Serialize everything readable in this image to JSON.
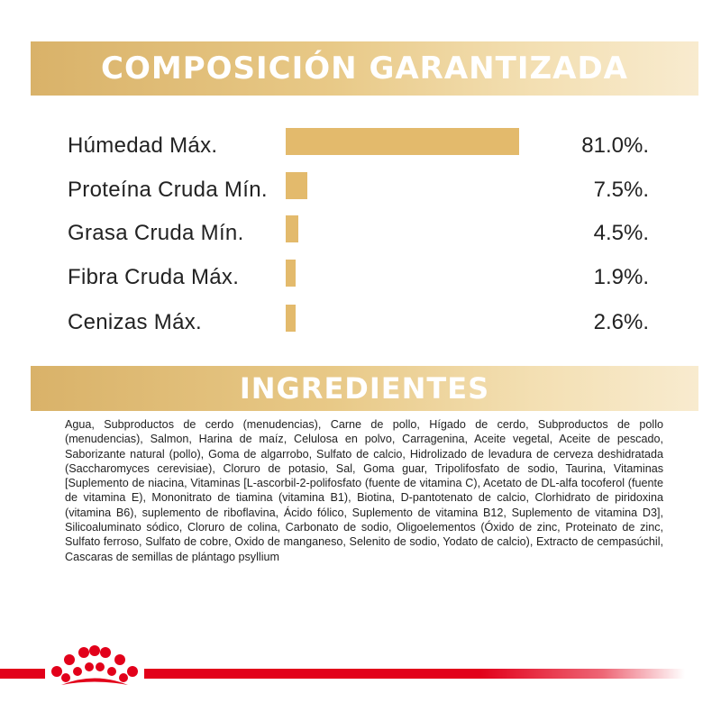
{
  "composition": {
    "title": "COMPOSICIÓN GARANTIZADA",
    "rows": [
      {
        "label": "Húmedad Máx.",
        "value": "81.0%.",
        "percent": 81.0
      },
      {
        "label": "Proteína Cruda Mín.",
        "value": "7.5%.",
        "percent": 7.5
      },
      {
        "label": "Grasa Cruda Mín.",
        "value": "4.5%.",
        "percent": 4.5
      },
      {
        "label": "Fibra Cruda Máx.",
        "value": "1.9%.",
        "percent": 1.9
      },
      {
        "label": "Cenizas Máx.",
        "value": "2.6%.",
        "percent": 2.6
      }
    ]
  },
  "ingredients": {
    "title": "INGREDIENTES",
    "text": "Agua, Subproductos de cerdo (menudencias), Carne de pollo, Hígado de cerdo, Subproductos de pollo (menudencias), Salmon, Harina de maíz, Celulosa en polvo, Carragenina, Aceite vegetal, Aceite de pescado, Saborizante natural (pollo), Goma de algarrobo, Sulfato de calcio, Hidrolizado de levadura de cerveza deshidratada (Saccharomyces cerevisiae), Cloruro de potasio, Sal, Goma guar, Tripolifosfato de sodio, Taurina, Vitaminas [Suplemento de niacina, Vitaminas [L-ascorbil-2-polifosfato (fuente de vitamina C), Acetato de DL-alfa tocoferol (fuente de vitamina E), Mononitrato de tiamina (vitamina B1), Biotina, D-pantotenato de calcio, Clorhidrato de piridoxina (vitamina B6), suplemento de riboflavina, Ácido fólico, Suplemento de vitamina B12, Suplemento de vitamina D3], Silicoaluminato sódico, Cloruro de colina, Carbonato de sodio, Oligoelementos (Óxido de zinc, Proteinato de zinc, Sulfato ferroso, Sulfato de cobre, Oxido de manganeso, Selenito de sodio, Yodato de calcio), Extracto de cempasúchil, Cascaras de semillas de plántago psyllium"
  },
  "colors": {
    "gold": "#e3ba6c",
    "brand_red": "#e2001a",
    "text": "#222222"
  },
  "footer": {
    "logo_icon": "royal-canin-crown-icon"
  }
}
